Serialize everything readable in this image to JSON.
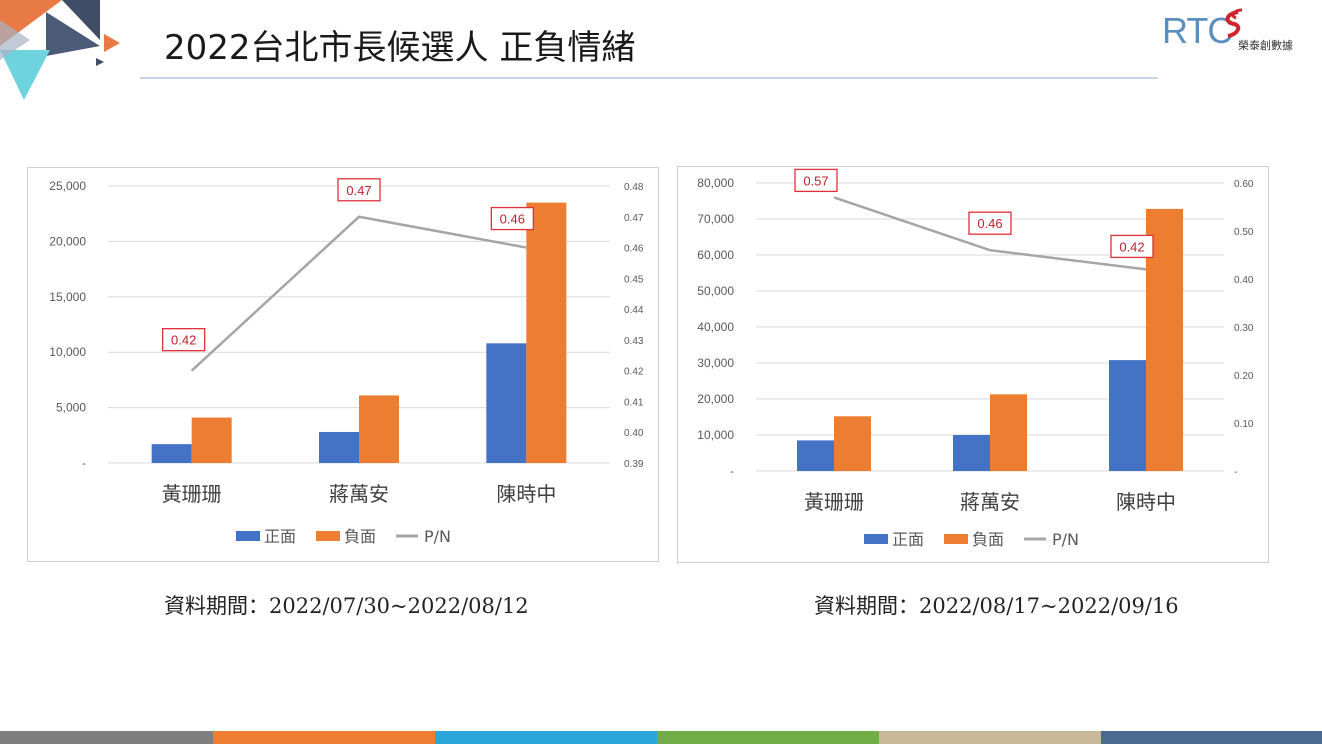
{
  "header": {
    "title": "2022台北市長候選人 正負情緒",
    "logo_text": "RTC",
    "logo_subtext": "榮泰創數據"
  },
  "colors": {
    "positive": "#4472C4",
    "negative": "#ED7D31",
    "pn_line": "#A5A5A5",
    "label_border": "#E0303A",
    "label_text": "#C0202A",
    "footer": [
      "#7f7f7f",
      "#ed7d31",
      "#2aa6d8",
      "#70ad47",
      "#c9b89a",
      "#4a6a8f"
    ]
  },
  "chart_data": [
    {
      "type": "bar",
      "categories": [
        "黃珊珊",
        "蔣萬安",
        "陳時中"
      ],
      "series": [
        {
          "name": "正面",
          "values": [
            1700,
            2800,
            10800
          ]
        },
        {
          "name": "負面",
          "values": [
            4100,
            6100,
            23500
          ]
        },
        {
          "name": "P/N",
          "type": "line",
          "axis": "right",
          "values": [
            0.42,
            0.47,
            0.46
          ]
        }
      ],
      "data_labels": [
        "0.42",
        "0.47",
        "0.46"
      ],
      "ylim": [
        0,
        25000
      ],
      "y_ticks": [
        "-",
        "5,000",
        "10,000",
        "15,000",
        "20,000",
        "25,000"
      ],
      "y_tick_values": [
        0,
        5000,
        10000,
        15000,
        20000,
        25000
      ],
      "y2lim": [
        0.39,
        0.48
      ],
      "y2_ticks": [
        "0.39",
        "0.40",
        "0.41",
        "0.42",
        "0.43",
        "0.44",
        "0.45",
        "0.46",
        "0.47",
        "0.48"
      ],
      "grid": true,
      "legend": "bottom",
      "caption": "資料期間：2022/07/30~2022/08/12"
    },
    {
      "type": "bar",
      "categories": [
        "黃珊珊",
        "蔣萬安",
        "陳時中"
      ],
      "series": [
        {
          "name": "正面",
          "values": [
            8500,
            10000,
            30800
          ]
        },
        {
          "name": "負面",
          "values": [
            15200,
            21300,
            72800
          ]
        },
        {
          "name": "P/N",
          "type": "line",
          "axis": "right",
          "values": [
            0.57,
            0.46,
            0.42
          ]
        }
      ],
      "data_labels": [
        "0.57",
        "0.46",
        "0.42"
      ],
      "ylim": [
        0,
        80000
      ],
      "y_ticks": [
        "-",
        "10,000",
        "20,000",
        "30,000",
        "40,000",
        "50,000",
        "60,000",
        "70,000",
        "80,000"
      ],
      "y_tick_values": [
        0,
        10000,
        20000,
        30000,
        40000,
        50000,
        60000,
        70000,
        80000
      ],
      "y2lim": [
        0,
        0.6
      ],
      "y2_ticks": [
        "-",
        "0.10",
        "0.20",
        "0.30",
        "0.40",
        "0.50",
        "0.60"
      ],
      "grid": true,
      "legend": "bottom",
      "caption": "資料期間：2022/08/17~2022/09/16"
    }
  ]
}
